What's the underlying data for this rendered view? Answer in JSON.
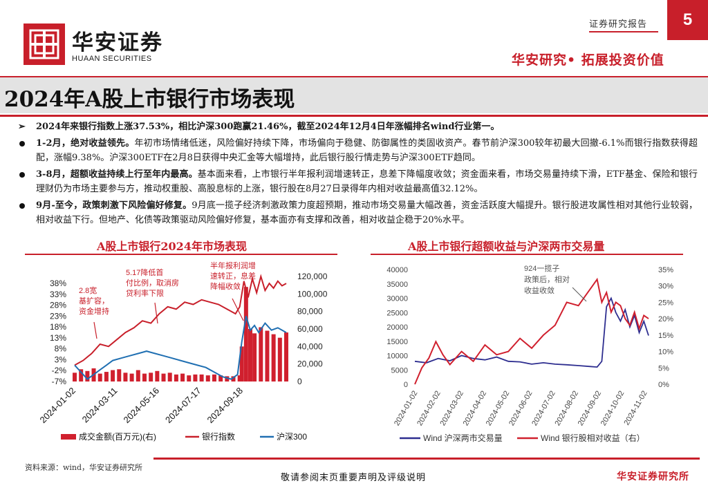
{
  "header": {
    "logo_cn": "华安证券",
    "logo_en": "HUAAN SECURITIES",
    "report_type": "证券研究报告",
    "page_number": "5",
    "slogan": "华安研究• 拓展投资价值",
    "brand_color": "#c81f2a"
  },
  "title": "2024年A股上市银行市场表现",
  "bullets": [
    {
      "marker": "arrow",
      "bold": "2024年来银行指数上涨37.53%，相比沪深300跑赢21.46%，截至2024年12月4日年涨幅排名wind行业第一。",
      "text": ""
    },
    {
      "marker": "dot",
      "bold": "1-2月，绝对收益领先。",
      "text": "年初市场情绪低迷，风险偏好持续下降，市场偏向于稳健、防御属性的类固收资产。春节前沪深300较年初最大回撤-6.1%而银行指数获得超配，涨幅9.38%。沪深300ETF在2月8日获得中央汇金等大幅增持，此后银行股行情走势与沪深300ETF趋同。"
    },
    {
      "marker": "dot",
      "bold": "3-8月，超额收益持续上行至年内最高。",
      "text": "基本面来看，上市银行半年报利润增速转正，息差下降幅度收敛；资金面来看，市场交易量持续下滑，ETF基金、保险和银行理财仍为市场主要参与方，推动权重股、高股息标的上涨，银行股在8月27日录得年内相对收益最高值32.12%。"
    },
    {
      "marker": "dot",
      "bold": "9月-至今，政策刺激下风险偏好修复。",
      "text": "9月底一揽子经济刺激政策力度超预期，推动市场交易量大幅改善，资金活跃度大幅提升。银行股进攻属性相对其他行业较弱，相对收益下行。但地产、化债等政策驱动风险偏好修复，基本面亦有支撑和改善，相对收益企稳于20%水平。"
    }
  ],
  "left_chart": {
    "title": "A股上市银行2024年市场表现",
    "annotations": [
      "2.8宽基扩容，资金增持",
      "5.17降低首付比例，取消房贷利率下限",
      "半年报利润增速转正，息差降幅收敛"
    ]
  },
  "right_chart": {
    "title": "A股上市银行超额收益与沪深两市交易量",
    "annotations": [
      "924一揽子政策后，相对收益收敛"
    ]
  },
  "footer": {
    "source": "资料来源：wind，华安证券研究所",
    "disclaimer": "敬请参阅末页重要声明及评级说明",
    "brand": "华安证券研究所"
  },
  "chart_data": [
    {
      "type": "line",
      "title": "",
      "x_tick_labels": [
        "2024-01-02",
        "2024-03-11",
        "2024-05-16",
        "2024-07-17",
        "2024-09-18"
      ],
      "y_left_ticks": [
        "38%",
        "33%",
        "28%",
        "23%",
        "18%",
        "13%",
        "8%",
        "3%",
        "-2%",
        "-7%"
      ],
      "y_left_range": [
        -7,
        38
      ],
      "y_right_ticks": [
        "120,000",
        "100,000",
        "80,000",
        "60,000",
        "40,000",
        "20,000",
        "0"
      ],
      "y_right_range": [
        0,
        120000
      ],
      "legend_position": "bottom",
      "series": [
        {
          "name": "成交金额(百万元)(右)",
          "axis": "right",
          "kind": "bar",
          "color": "#d0202e",
          "x": [
            0,
            0.03,
            0.06,
            0.09,
            0.12,
            0.15,
            0.18,
            0.21,
            0.24,
            0.27,
            0.3,
            0.33,
            0.36,
            0.39,
            0.42,
            0.45,
            0.48,
            0.51,
            0.54,
            0.57,
            0.6,
            0.63,
            0.66,
            0.69,
            0.72,
            0.75,
            0.78,
            0.79,
            0.81,
            0.83,
            0.85,
            0.88,
            0.91,
            0.94,
            0.97,
            1.0
          ],
          "values": [
            10000,
            14000,
            12000,
            15000,
            9000,
            11000,
            13000,
            14000,
            10000,
            9000,
            13000,
            9000,
            10000,
            12000,
            9000,
            10000,
            8000,
            9000,
            7000,
            8000,
            8000,
            7000,
            8000,
            7000,
            6000,
            6000,
            7000,
            40000,
            108000,
            60000,
            55000,
            62000,
            58000,
            54000,
            50000,
            56000
          ]
        },
        {
          "name": "银行指数",
          "axis": "left",
          "kind": "line",
          "color": "#c81f2a",
          "x": [
            0,
            0.04,
            0.08,
            0.12,
            0.16,
            0.2,
            0.24,
            0.28,
            0.32,
            0.36,
            0.4,
            0.44,
            0.48,
            0.52,
            0.56,
            0.6,
            0.64,
            0.68,
            0.72,
            0.76,
            0.78,
            0.8,
            0.82,
            0.84,
            0.86,
            0.88,
            0.9,
            0.92,
            0.94,
            0.96,
            0.98,
            1.0
          ],
          "values": [
            0,
            2,
            5,
            9,
            8,
            11,
            14,
            16,
            19,
            18,
            22,
            25,
            24,
            27,
            26,
            28,
            27,
            26,
            24,
            22,
            25,
            36,
            29,
            37,
            31,
            38,
            32,
            35,
            33,
            36,
            34,
            35
          ]
        },
        {
          "name": "沪深300",
          "axis": "left",
          "kind": "line",
          "color": "#1f6fb2",
          "x": [
            0,
            0.03,
            0.06,
            0.09,
            0.12,
            0.15,
            0.18,
            0.22,
            0.26,
            0.3,
            0.34,
            0.38,
            0.42,
            0.46,
            0.5,
            0.54,
            0.58,
            0.62,
            0.66,
            0.7,
            0.74,
            0.77,
            0.79,
            0.81,
            0.83,
            0.85,
            0.87,
            0.9,
            0.93,
            0.96,
            1.0
          ],
          "values": [
            0,
            -3,
            -6,
            -4,
            -2,
            0,
            2,
            3,
            4,
            5,
            6,
            5,
            4,
            3,
            2,
            1,
            0,
            -1,
            -3,
            -5,
            -6,
            -4,
            10,
            21,
            15,
            17,
            14,
            18,
            15,
            16,
            14
          ]
        }
      ]
    },
    {
      "type": "line",
      "title": "",
      "x_tick_labels": [
        "2024-01-02",
        "2024-02-02",
        "2024-03-02",
        "2024-04-02",
        "2024-05-02",
        "2024-06-02",
        "2024-07-02",
        "2024-08-02",
        "2024-09-02",
        "2024-10-02",
        "2024-11-02"
      ],
      "y_left_ticks": [
        "40000",
        "35000",
        "30000",
        "25000",
        "20000",
        "15000",
        "10000",
        "5000",
        "0"
      ],
      "y_left_range": [
        0,
        40000
      ],
      "y_right_ticks": [
        "35%",
        "30%",
        "25%",
        "20%",
        "15%",
        "10%",
        "5%",
        "0%"
      ],
      "y_right_range": [
        0,
        35
      ],
      "legend_position": "bottom",
      "series": [
        {
          "name": "Wind 沪深两市交易量",
          "axis": "left",
          "color": "#2d2d8f",
          "x": [
            0,
            0.05,
            0.1,
            0.15,
            0.2,
            0.25,
            0.3,
            0.35,
            0.4,
            0.45,
            0.5,
            0.55,
            0.6,
            0.65,
            0.7,
            0.75,
            0.78,
            0.8,
            0.82,
            0.84,
            0.86,
            0.88,
            0.9,
            0.92,
            0.94,
            0.96,
            0.98,
            1.0
          ],
          "values": [
            8000,
            7500,
            9000,
            8200,
            10000,
            9000,
            8500,
            9500,
            8000,
            7800,
            7000,
            7500,
            7000,
            6800,
            6500,
            6200,
            6000,
            8000,
            27000,
            30000,
            25000,
            22000,
            26000,
            20000,
            24000,
            18000,
            22000,
            17000
          ]
        },
        {
          "name": "Wind 银行股相对收益（右）",
          "axis": "right",
          "color": "#d0202e",
          "x": [
            0,
            0.03,
            0.06,
            0.09,
            0.12,
            0.15,
            0.2,
            0.25,
            0.3,
            0.35,
            0.4,
            0.45,
            0.5,
            0.55,
            0.6,
            0.65,
            0.7,
            0.73,
            0.76,
            0.78,
            0.8,
            0.82,
            0.84,
            0.86,
            0.88,
            0.9,
            0.92,
            0.94,
            0.96,
            0.98,
            1.0
          ],
          "values": [
            0,
            5,
            8,
            13,
            9,
            6,
            10,
            7,
            12,
            9,
            10,
            14,
            11,
            15,
            18,
            25,
            24,
            27,
            30,
            32,
            25,
            28,
            22,
            25,
            24,
            20,
            18,
            22,
            17,
            21,
            20
          ]
        }
      ]
    }
  ]
}
